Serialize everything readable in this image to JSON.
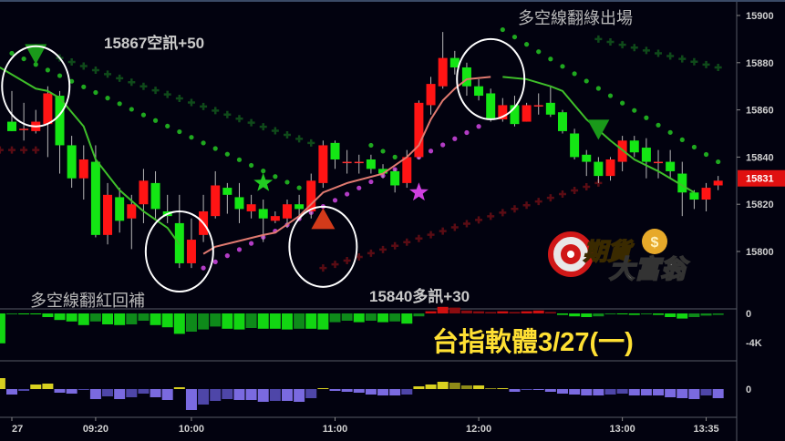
{
  "chart_data": {
    "type": "candlestick",
    "price_axis": {
      "ticks": [
        15900,
        15880,
        15860,
        15840,
        15820,
        15800
      ],
      "range": [
        15788,
        15906
      ]
    },
    "last_price": 15831,
    "time_axis": {
      "labels": [
        {
          "text": "27",
          "index": 1
        },
        {
          "text": "09:20",
          "index": 8
        },
        {
          "text": "10:00",
          "index": 16
        },
        {
          "text": "11:00",
          "index": 28
        },
        {
          "text": "12:00",
          "index": 40
        },
        {
          "text": "13:00",
          "index": 52
        },
        {
          "text": "13:35",
          "index": 59
        }
      ]
    },
    "candles_ohlc": [
      [
        15855,
        15868,
        15851,
        15851
      ],
      [
        15852,
        15863,
        15847,
        15852
      ],
      [
        15851,
        15860,
        15850,
        15855
      ],
      [
        15854,
        15870,
        15840,
        15867
      ],
      [
        15866,
        15868,
        15833,
        15845
      ],
      [
        15845,
        15849,
        15827,
        15831
      ],
      [
        15831,
        15845,
        15822,
        15839
      ],
      [
        15838,
        15845,
        15806,
        15807
      ],
      [
        15807,
        15829,
        15803,
        15824
      ],
      [
        15823,
        15827,
        15808,
        15813
      ],
      [
        15814,
        15824,
        15801,
        15820
      ],
      [
        15820,
        15835,
        15812,
        15830
      ],
      [
        15829,
        15834,
        15814,
        15818
      ],
      [
        15817,
        15824,
        15812,
        15815
      ],
      [
        15812,
        15824,
        15793,
        15795
      ],
      [
        15795,
        15814,
        15793,
        15805
      ],
      [
        15807,
        15824,
        15804,
        15817
      ],
      [
        15815,
        15834,
        15814,
        15828
      ],
      [
        15827,
        15829,
        15816,
        15824
      ],
      [
        15823,
        15829,
        15812,
        15818
      ],
      [
        15817,
        15824,
        15814,
        15820
      ],
      [
        15818,
        15822,
        15804,
        15814
      ],
      [
        15813,
        15817,
        15812,
        15815
      ],
      [
        15814,
        15822,
        15810,
        15820
      ],
      [
        15820,
        15824,
        15814,
        15818
      ],
      [
        15817,
        15833,
        15814,
        15830
      ],
      [
        15829,
        15847,
        15827,
        15845
      ],
      [
        15846,
        15847,
        15835,
        15839
      ],
      [
        15838,
        15843,
        15833,
        15838
      ],
      [
        15838,
        15841,
        15833,
        15838
      ],
      [
        15839,
        15841,
        15833,
        15835
      ],
      [
        15835,
        15837,
        15831,
        15833
      ],
      [
        15834,
        15835,
        15825,
        15828
      ],
      [
        15829,
        15843,
        15827,
        15840
      ],
      [
        15840,
        15864,
        15839,
        15863
      ],
      [
        15862,
        15874,
        15858,
        15871
      ],
      [
        15870,
        15893,
        15869,
        15882
      ],
      [
        15882,
        15885,
        15875,
        15878
      ],
      [
        15878,
        15880,
        15866,
        15870
      ],
      [
        15870,
        15873,
        15864,
        15866
      ],
      [
        15867,
        15869,
        15855,
        15856
      ],
      [
        15856,
        15865,
        15855,
        15862
      ],
      [
        15862,
        15866,
        15853,
        15854
      ],
      [
        15855,
        15863,
        15855,
        15862
      ],
      [
        15862,
        15867,
        15858,
        15862
      ],
      [
        15863,
        15870,
        15857,
        15858
      ],
      [
        15859,
        15860,
        15850,
        15851
      ],
      [
        15850,
        15852,
        15839,
        15840
      ],
      [
        15841,
        15843,
        15832,
        15838
      ],
      [
        15838,
        15840,
        15829,
        15832
      ],
      [
        15832,
        15840,
        15830,
        15839
      ],
      [
        15838,
        15849,
        15834,
        15847
      ],
      [
        15847,
        15849,
        15840,
        15842
      ],
      [
        15844,
        15848,
        15831,
        15838
      ],
      [
        15838,
        15843,
        15831,
        15838
      ],
      [
        15838,
        15843,
        15831,
        15834
      ],
      [
        15833,
        15838,
        15815,
        15825
      ],
      [
        15825,
        15826,
        15818,
        15822
      ],
      [
        15822,
        15829,
        15817,
        15827
      ],
      [
        15828,
        15832,
        15826,
        15830
      ]
    ],
    "trend_line_segments": [
      {
        "color": "#3fbf2a",
        "points": [
          [
            0,
            15878
          ],
          [
            3,
            15869
          ],
          [
            4,
            15868
          ],
          [
            5,
            15865
          ],
          [
            7,
            15853
          ],
          [
            8,
            15839
          ],
          [
            10,
            15826
          ],
          [
            12,
            15817
          ],
          [
            14,
            15810
          ],
          [
            15,
            15803
          ]
        ]
      },
      {
        "color": "#e07a70",
        "points": [
          [
            17,
            15799
          ],
          [
            18,
            15802
          ],
          [
            22,
            15807
          ],
          [
            23,
            15808
          ],
          [
            25,
            15815
          ],
          [
            26,
            15820
          ],
          [
            27,
            15825
          ],
          [
            29,
            15829
          ],
          [
            32,
            15833
          ],
          [
            34,
            15840
          ],
          [
            35,
            15845
          ],
          [
            36,
            15856
          ],
          [
            37,
            15864
          ],
          [
            38,
            15869
          ],
          [
            39,
            15873
          ],
          [
            41,
            15874
          ]
        ]
      },
      {
        "color": "#3fbf2a",
        "points": [
          [
            42,
            15874
          ],
          [
            44,
            15873
          ],
          [
            46,
            15870
          ],
          [
            47,
            15868
          ],
          [
            49,
            15856
          ],
          [
            51,
            15847
          ],
          [
            53,
            15839
          ],
          [
            55,
            15834
          ],
          [
            57,
            15828
          ],
          [
            58,
            15825
          ]
        ]
      }
    ],
    "dot_segments": [
      {
        "color": "#1fa81f",
        "shape": "dot",
        "from": [
          1,
          15884
        ],
        "to": [
          25,
          15827
        ]
      },
      {
        "color": "#1fa81f",
        "shape": "dot",
        "from": [
          31,
          15845
        ],
        "to": [
          33,
          15840
        ]
      },
      {
        "color": "#1fa81f",
        "shape": "dot",
        "from": [
          42,
          15894
        ],
        "to": [
          60,
          15838
        ]
      },
      {
        "color": "#b23cc4",
        "shape": "dot",
        "from": [
          17,
          15793
        ],
        "to": [
          40,
          15853
        ]
      },
      {
        "color": "#0f4a1a",
        "shape": "cross",
        "from": [
          5,
          15882
        ],
        "to": [
          26,
          15846
        ]
      },
      {
        "color": "#0f4a1a",
        "shape": "cross",
        "from": [
          50,
          15890
        ],
        "to": [
          60,
          15878
        ]
      },
      {
        "color": "#5a0c14",
        "shape": "cross",
        "from": [
          0,
          15843
        ],
        "to": [
          3,
          15843
        ]
      },
      {
        "color": "#5a0c14",
        "shape": "cross",
        "from": [
          27,
          15793
        ],
        "to": [
          50,
          15829
        ]
      }
    ],
    "signals": [
      {
        "type": "triangle-down",
        "color": "#1a9a1a",
        "index": 3,
        "price": 15884
      },
      {
        "type": "triangle-up",
        "color": "#d23a1a",
        "index": 27,
        "price": 15813
      },
      {
        "type": "triangle-down",
        "color": "#1a9a1a",
        "index": 50,
        "price": 15852
      },
      {
        "type": "star",
        "color": "#22cc22",
        "index": 22,
        "price": 15829
      },
      {
        "type": "star",
        "color": "#d040e0",
        "index": 35,
        "price": 15825
      }
    ],
    "highlight_circles": [
      [
        3,
        15870
      ],
      [
        15,
        15800
      ],
      [
        27,
        15802
      ],
      [
        41,
        15873
      ]
    ],
    "panel2": {
      "axis_labels": [
        "0",
        "-4K"
      ],
      "ticks": [
        0,
        -4
      ],
      "values": [
        -4.1,
        -0.1,
        -0.1,
        -0.1,
        -0.5,
        -0.9,
        -1.1,
        -1.6,
        -1.1,
        -1.5,
        -1.6,
        -1.5,
        -1.0,
        -1.6,
        -1.9,
        -2.8,
        -2.5,
        -2.2,
        -1.8,
        -2.1,
        -2.2,
        -2.0,
        -2.1,
        -2.1,
        -2.2,
        -2.1,
        -2.1,
        -2.2,
        -1.2,
        -1.0,
        -1.2,
        -1.0,
        -1.2,
        -1.1,
        -1.4,
        -0.4,
        0.3,
        0.9,
        0.8,
        0.4,
        0.3,
        0.2,
        0.3,
        0.2,
        0.3,
        0.4,
        0.2,
        -0.2,
        -0.4,
        -0.5,
        -0.4,
        -0.1,
        -0.1,
        -0.2,
        -0.1,
        -0.2,
        -0.5,
        -0.7,
        -0.5,
        -0.3,
        -0.2
      ]
    },
    "panel3": {
      "axis_labels": [
        "0"
      ],
      "ticks": [
        0
      ],
      "values": [
        12,
        -6,
        -2,
        5,
        6,
        -4,
        -5,
        -1,
        -11,
        -8,
        -11,
        -9,
        -5,
        -9,
        -12,
        2,
        -23,
        -17,
        -13,
        -11,
        -12,
        -12,
        -14,
        -13,
        -13,
        -14,
        -10,
        1,
        -2,
        -3,
        -4,
        -6,
        -7,
        -7,
        -6,
        3,
        5,
        8,
        7,
        4,
        4,
        1,
        1,
        -3,
        -1,
        -1,
        -3,
        -5,
        -6,
        -7,
        -7,
        -6,
        -5,
        -7,
        -7,
        -7,
        -9,
        -10,
        -11,
        -7,
        -10
      ]
    }
  },
  "annotations": {
    "short_signal": "15867空訊+50",
    "exit_text": "多空線翻綠出場",
    "cover_text": "多空線翻紅回補",
    "long_signal": "15840多訊+30",
    "title": "台指軟體3/27(一)"
  },
  "logo": {
    "text": "期貨大富翁"
  },
  "colors": {
    "up": "#ff1414",
    "down": "#14e614",
    "background": "#02020f",
    "title": "#ffe033",
    "last_price_bg": "#e01010"
  }
}
